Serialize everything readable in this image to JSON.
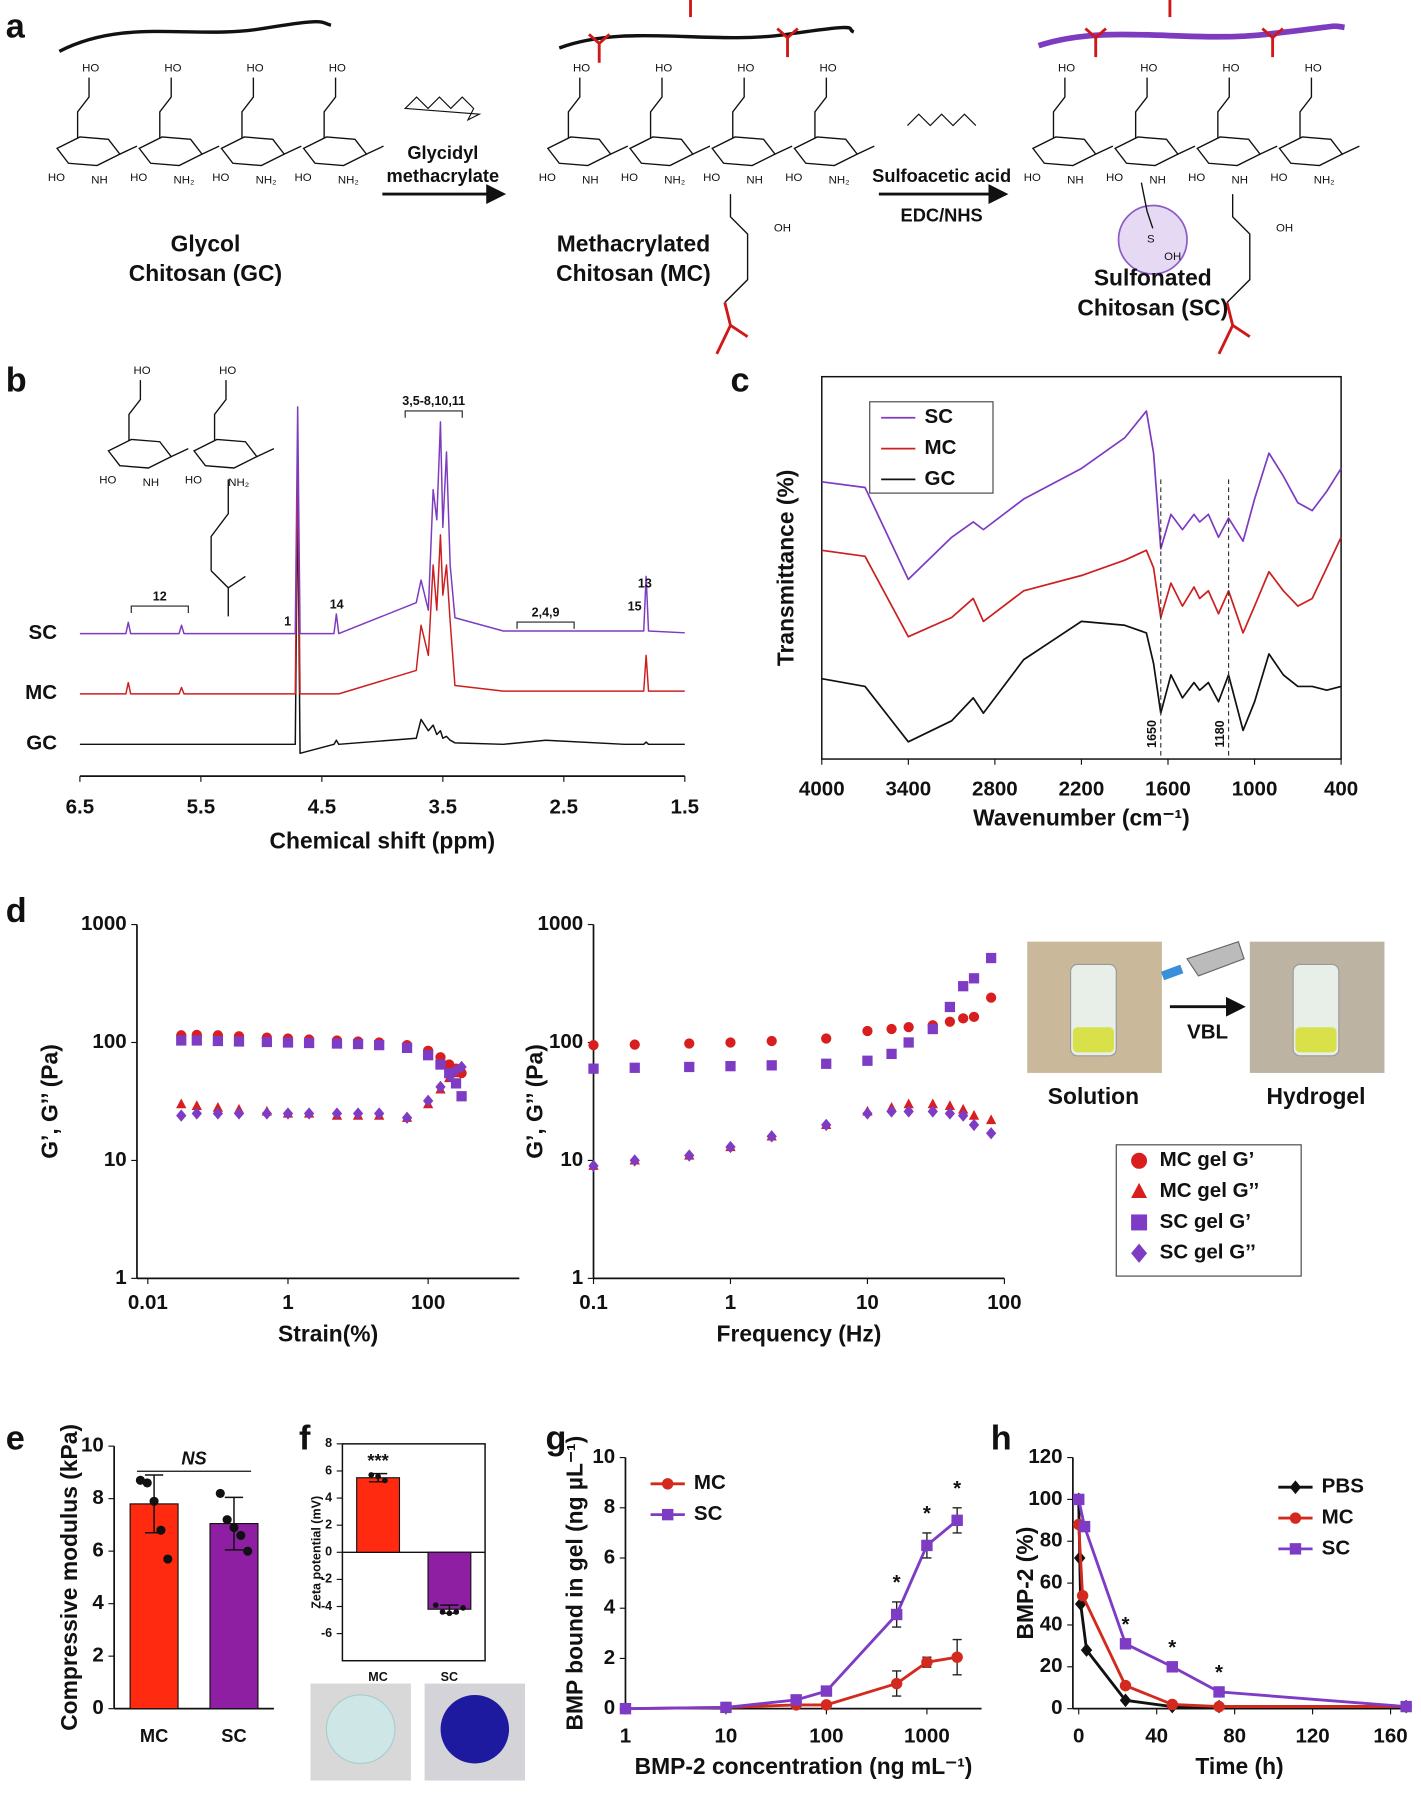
{
  "scheme": {
    "panel": "a",
    "reagent1": [
      "Glycidyl",
      "methacrylate"
    ],
    "reagent2": "Sulfoacetic acid",
    "coupling": "EDC/NHS",
    "products": [
      {
        "name": [
          "Glycol",
          "Chitosan (GC)"
        ]
      },
      {
        "name": [
          "Methacrylated",
          "Chitosan (MC)"
        ]
      },
      {
        "name": [
          "Sulfonated",
          "Chitosan (SC)"
        ]
      }
    ],
    "atoms": {
      "hydroxyl": "HO",
      "amide": "NH",
      "amine": "NH₂",
      "hydroxy": "OH",
      "sulfur": "S"
    }
  },
  "photos": {
    "before": "Solution",
    "after": "Hydrogel",
    "method": "VBL"
  },
  "chart_data": [
    {
      "panel": "b",
      "type": "line",
      "xlabel": "Chemical shift (ppm)",
      "x": [
        6.5,
        6.12,
        6.1,
        6.08,
        5.68,
        5.66,
        5.64,
        4.9,
        4.72,
        4.7,
        4.68,
        4.4,
        4.38,
        4.36,
        3.72,
        3.68,
        3.62,
        3.58,
        3.55,
        3.52,
        3.5,
        3.47,
        3.44,
        3.4,
        3.0,
        2.65,
        2.0,
        1.84,
        1.82,
        1.8,
        1.5
      ],
      "xlim": [
        6.5,
        1.5
      ],
      "xticks": [
        6.5,
        5.5,
        4.5,
        3.5,
        2.5,
        1.5
      ],
      "ylim": [
        0,
        100
      ],
      "series": [
        {
          "name": "GC",
          "color": "#111111",
          "values": [
            2.4,
            2.4,
            2.4,
            2.4,
            2.4,
            2.4,
            2.4,
            2.4,
            2.4,
            70,
            0,
            2.4,
            3.5,
            2.4,
            4,
            9,
            6,
            7.5,
            5,
            6,
            4,
            4.5,
            3.5,
            2.8,
            2.4,
            3.5,
            2.4,
            2.4,
            3,
            2.4,
            2.4
          ]
        },
        {
          "name": "MC",
          "color": "#cc2020",
          "values": [
            15.8,
            15.8,
            18.8,
            15.8,
            15.8,
            17.5,
            15.8,
            15.8,
            15.8,
            80,
            15.8,
            15.8,
            15.8,
            15.8,
            22,
            34,
            26,
            50,
            38,
            58,
            42,
            50,
            35,
            18,
            16.5,
            16.5,
            16.5,
            16.5,
            26,
            16.5,
            16.5
          ]
        },
        {
          "name": "SC",
          "color": "#7d3cc0",
          "values": [
            31.8,
            31.8,
            34.8,
            31.8,
            31.8,
            34,
            31.8,
            31.8,
            31.8,
            92,
            31.8,
            31.8,
            37,
            31.8,
            40,
            46,
            38,
            70,
            62,
            88,
            60,
            80,
            50,
            36,
            32.5,
            32.5,
            32.5,
            32.5,
            47,
            32.5,
            32
          ]
        }
      ],
      "annotations": [
        "12",
        "1",
        "14",
        "3,5-8,10,11",
        "2,4,9",
        "15",
        "13"
      ]
    },
    {
      "panel": "c",
      "type": "line",
      "xlabel": "Wavenumber (cm⁻¹)",
      "ylabel": "Transmittance (%)",
      "frame": true,
      "x": [
        4000,
        3700,
        3400,
        3100,
        2950,
        2880,
        2600,
        2200,
        1900,
        1750,
        1700,
        1650,
        1580,
        1500,
        1420,
        1380,
        1320,
        1250,
        1180,
        1080,
        1000,
        900,
        800,
        700,
        600,
        500,
        400
      ],
      "xlim": [
        4000,
        400
      ],
      "xticks": [
        4000,
        3400,
        2800,
        2200,
        1600,
        1000,
        400
      ],
      "ylim": [
        0,
        100
      ],
      "legend": "upper left",
      "series": [
        {
          "name": "SC",
          "color": "#7d3cc0",
          "values": [
            72.5,
            71,
            47,
            58,
            62,
            60,
            68,
            76,
            84,
            91,
            80,
            55,
            64,
            60,
            64,
            62,
            64,
            58,
            63,
            57,
            68,
            80,
            74,
            67,
            65,
            70,
            76
          ]
        },
        {
          "name": "MC",
          "color": "#cc2020",
          "values": [
            54.6,
            53,
            32,
            37,
            42,
            36,
            44,
            48,
            52,
            54.6,
            50,
            37,
            46,
            40,
            45,
            42,
            44,
            38,
            44,
            33,
            40,
            49,
            44,
            40,
            42,
            50,
            58
          ]
        },
        {
          "name": "GC",
          "color": "#111111",
          "values": [
            21,
            19,
            4.5,
            10,
            16,
            12,
            26,
            36,
            35,
            33,
            25,
            12,
            22,
            16,
            20,
            18,
            20,
            15,
            22,
            7.5,
            15,
            27.5,
            22,
            19,
            19,
            18,
            19
          ]
        }
      ],
      "markers": [
        1650,
        1180
      ]
    },
    {
      "panel": "d",
      "type": "scatter",
      "xlabel": "Strain(%)",
      "ylabel": "G’, G’’ (Pa)",
      "xscale": "log",
      "yscale": "log",
      "x": [
        0.03,
        0.05,
        0.1,
        0.2,
        0.5,
        1,
        2,
        5,
        10,
        20,
        50,
        100,
        150,
        200,
        250,
        300
      ],
      "xlim": [
        0.007,
        2000
      ],
      "xticks": [
        0.01,
        1,
        100
      ],
      "ylim": [
        1,
        1000
      ],
      "yticks": [
        1,
        10,
        100,
        1000
      ],
      "series": [
        {
          "color": "#d81e1e",
          "marker": "circle",
          "values": [
            115,
            116,
            115,
            113,
            110,
            108,
            106,
            104,
            102,
            100,
            95,
            85,
            75,
            65,
            60,
            55
          ]
        },
        {
          "color": "#d81e1e",
          "marker": "triangle",
          "values": [
            30,
            29,
            28,
            27,
            26,
            25,
            25,
            24,
            24,
            24,
            23,
            30,
            40,
            50,
            55,
            60
          ]
        },
        {
          "color": "#7e3cc4",
          "marker": "square",
          "values": [
            104,
            104,
            103,
            102,
            101,
            100,
            99,
            98,
            97,
            95,
            90,
            78,
            65,
            55,
            45,
            35
          ]
        },
        {
          "color": "#7e3cc4",
          "marker": "diamond",
          "values": [
            24,
            25,
            25,
            25,
            25,
            25,
            25,
            25,
            25,
            25,
            23,
            32,
            42,
            52,
            58,
            62
          ]
        }
      ]
    },
    {
      "type": "scatter",
      "xlabel": "Frequency (Hz)",
      "ylabel": "G’, G’’ (Pa)",
      "xscale": "log",
      "yscale": "log",
      "x": [
        0.1,
        0.2,
        0.5,
        1,
        2,
        5,
        10,
        15,
        20,
        30,
        40,
        50,
        60,
        80
      ],
      "xlim": [
        0.1,
        100
      ],
      "xticks": [
        0.1,
        1,
        10,
        100
      ],
      "ylim": [
        1,
        1000
      ],
      "yticks": [
        1,
        10,
        100,
        1000
      ],
      "legend": "right",
      "series": [
        {
          "name": "MC gel G’",
          "color": "#d81e1e",
          "marker": "circle",
          "values": [
            95,
            96,
            98,
            100,
            103,
            108,
            125,
            130,
            135,
            140,
            150,
            160,
            165,
            240
          ]
        },
        {
          "name": "MC gel G’’",
          "color": "#d81e1e",
          "marker": "triangle",
          "values": [
            9,
            10,
            11,
            13,
            16,
            20,
            26,
            28,
            30,
            30,
            29,
            27,
            24,
            22
          ]
        },
        {
          "name": "SC gel G’",
          "color": "#7e3cc4",
          "marker": "square",
          "values": [
            60,
            61,
            62,
            63,
            64,
            66,
            70,
            80,
            100,
            130,
            200,
            300,
            350,
            520
          ]
        },
        {
          "name": "SC gel G’’",
          "color": "#7e3cc4",
          "marker": "diamond",
          "values": [
            9,
            10,
            11,
            13,
            16,
            20,
            25,
            26,
            26,
            26,
            25,
            24,
            20,
            17
          ]
        }
      ]
    },
    {
      "panel": "e",
      "type": "bar",
      "ylabel": "Compressive modulus (kPa)",
      "categories": [
        "MC",
        "SC"
      ],
      "values": [
        7.8,
        7.05
      ],
      "errors": [
        1.1,
        1.0
      ],
      "points": [
        [
          8.7,
          8.6,
          7.9,
          6.8,
          5.7
        ],
        [
          8.2,
          7.2,
          6.9,
          6.6,
          6.0
        ]
      ],
      "colors": [
        "#ff2a10",
        "#8e1fa3"
      ],
      "ylim": [
        0,
        10
      ],
      "yticks": [
        0,
        2,
        4,
        6,
        8,
        10
      ],
      "annotation": "NS"
    },
    {
      "panel": "f",
      "type": "bar",
      "ylabel": "Zeta potential (mV)",
      "frame": true,
      "categories": [
        "MC",
        "SC"
      ],
      "values": [
        5.5,
        -4.2
      ],
      "errors": [
        0.3,
        0.3
      ],
      "points": [
        [
          5.7,
          5.6,
          5.3
        ],
        [
          -3.9,
          -4.4,
          -4.5,
          -4.4,
          -4.1
        ]
      ],
      "colors": [
        "#ff2a10",
        "#8e1fa3"
      ],
      "ylim": [
        -8,
        8
      ],
      "yticks": [
        -6,
        -4,
        -2,
        0,
        2,
        4,
        6,
        8
      ],
      "annotation": "***"
    },
    {
      "panel": "g",
      "type": "line",
      "xlabel": "BMP-2 concentration (ng mL⁻¹)",
      "ylabel": "BMP bound in gel (ng µL⁻¹)",
      "xscale": "log",
      "x": [
        1,
        10,
        50,
        100,
        500,
        1000,
        2000
      ],
      "xlim": [
        1,
        3500
      ],
      "xticks": [
        1,
        10,
        100,
        1000
      ],
      "ylim": [
        0,
        10
      ],
      "yticks": [
        0,
        2,
        4,
        6,
        8,
        10
      ],
      "legend": "upper left",
      "series": [
        {
          "name": "MC",
          "color": "#d42a1e",
          "marker": "circle",
          "values": [
            0,
            0.05,
            0.15,
            0.15,
            1,
            1.85,
            2.05
          ],
          "errors": [
            0,
            0,
            0.05,
            0.05,
            0.5,
            0.2,
            0.7
          ]
        },
        {
          "name": "SC",
          "color": "#7e3cc4",
          "marker": "square",
          "values": [
            0,
            0.05,
            0.35,
            0.7,
            3.75,
            6.5,
            7.5
          ],
          "errors": [
            0,
            0,
            0.1,
            0.1,
            0.5,
            0.5,
            0.5
          ]
        }
      ],
      "significance": "*",
      "significant_x": [
        500,
        1000,
        2000
      ]
    },
    {
      "panel": "h",
      "type": "line",
      "xlabel": "Time (h)",
      "ylabel": "BMP-2 (%)",
      "xlim": [
        -3,
        168
      ],
      "xticks": [
        0,
        40,
        80,
        120,
        160
      ],
      "ylim": [
        0,
        120
      ],
      "yticks": [
        0,
        20,
        40,
        60,
        80,
        100,
        120
      ],
      "legend": "upper right",
      "series": [
        {
          "name": "PBS",
          "color": "#111111",
          "marker": "diamond",
          "x": [
            0,
            0.5,
            1,
            4,
            24,
            48,
            72,
            168
          ],
          "values": [
            100,
            72,
            50,
            28,
            4,
            1,
            1,
            1
          ]
        },
        {
          "name": "MC",
          "color": "#d42a1e",
          "marker": "circle",
          "x": [
            0,
            2,
            24,
            48,
            72,
            168
          ],
          "values": [
            88,
            54,
            11,
            2,
            1,
            1
          ]
        },
        {
          "name": "SC",
          "color": "#7e3cc4",
          "marker": "square",
          "x": [
            0,
            3,
            24,
            48,
            72,
            168
          ],
          "values": [
            100,
            87,
            31,
            20,
            8,
            1
          ]
        }
      ],
      "significance": "*",
      "significant_x": [
        24,
        48,
        72
      ]
    }
  ]
}
